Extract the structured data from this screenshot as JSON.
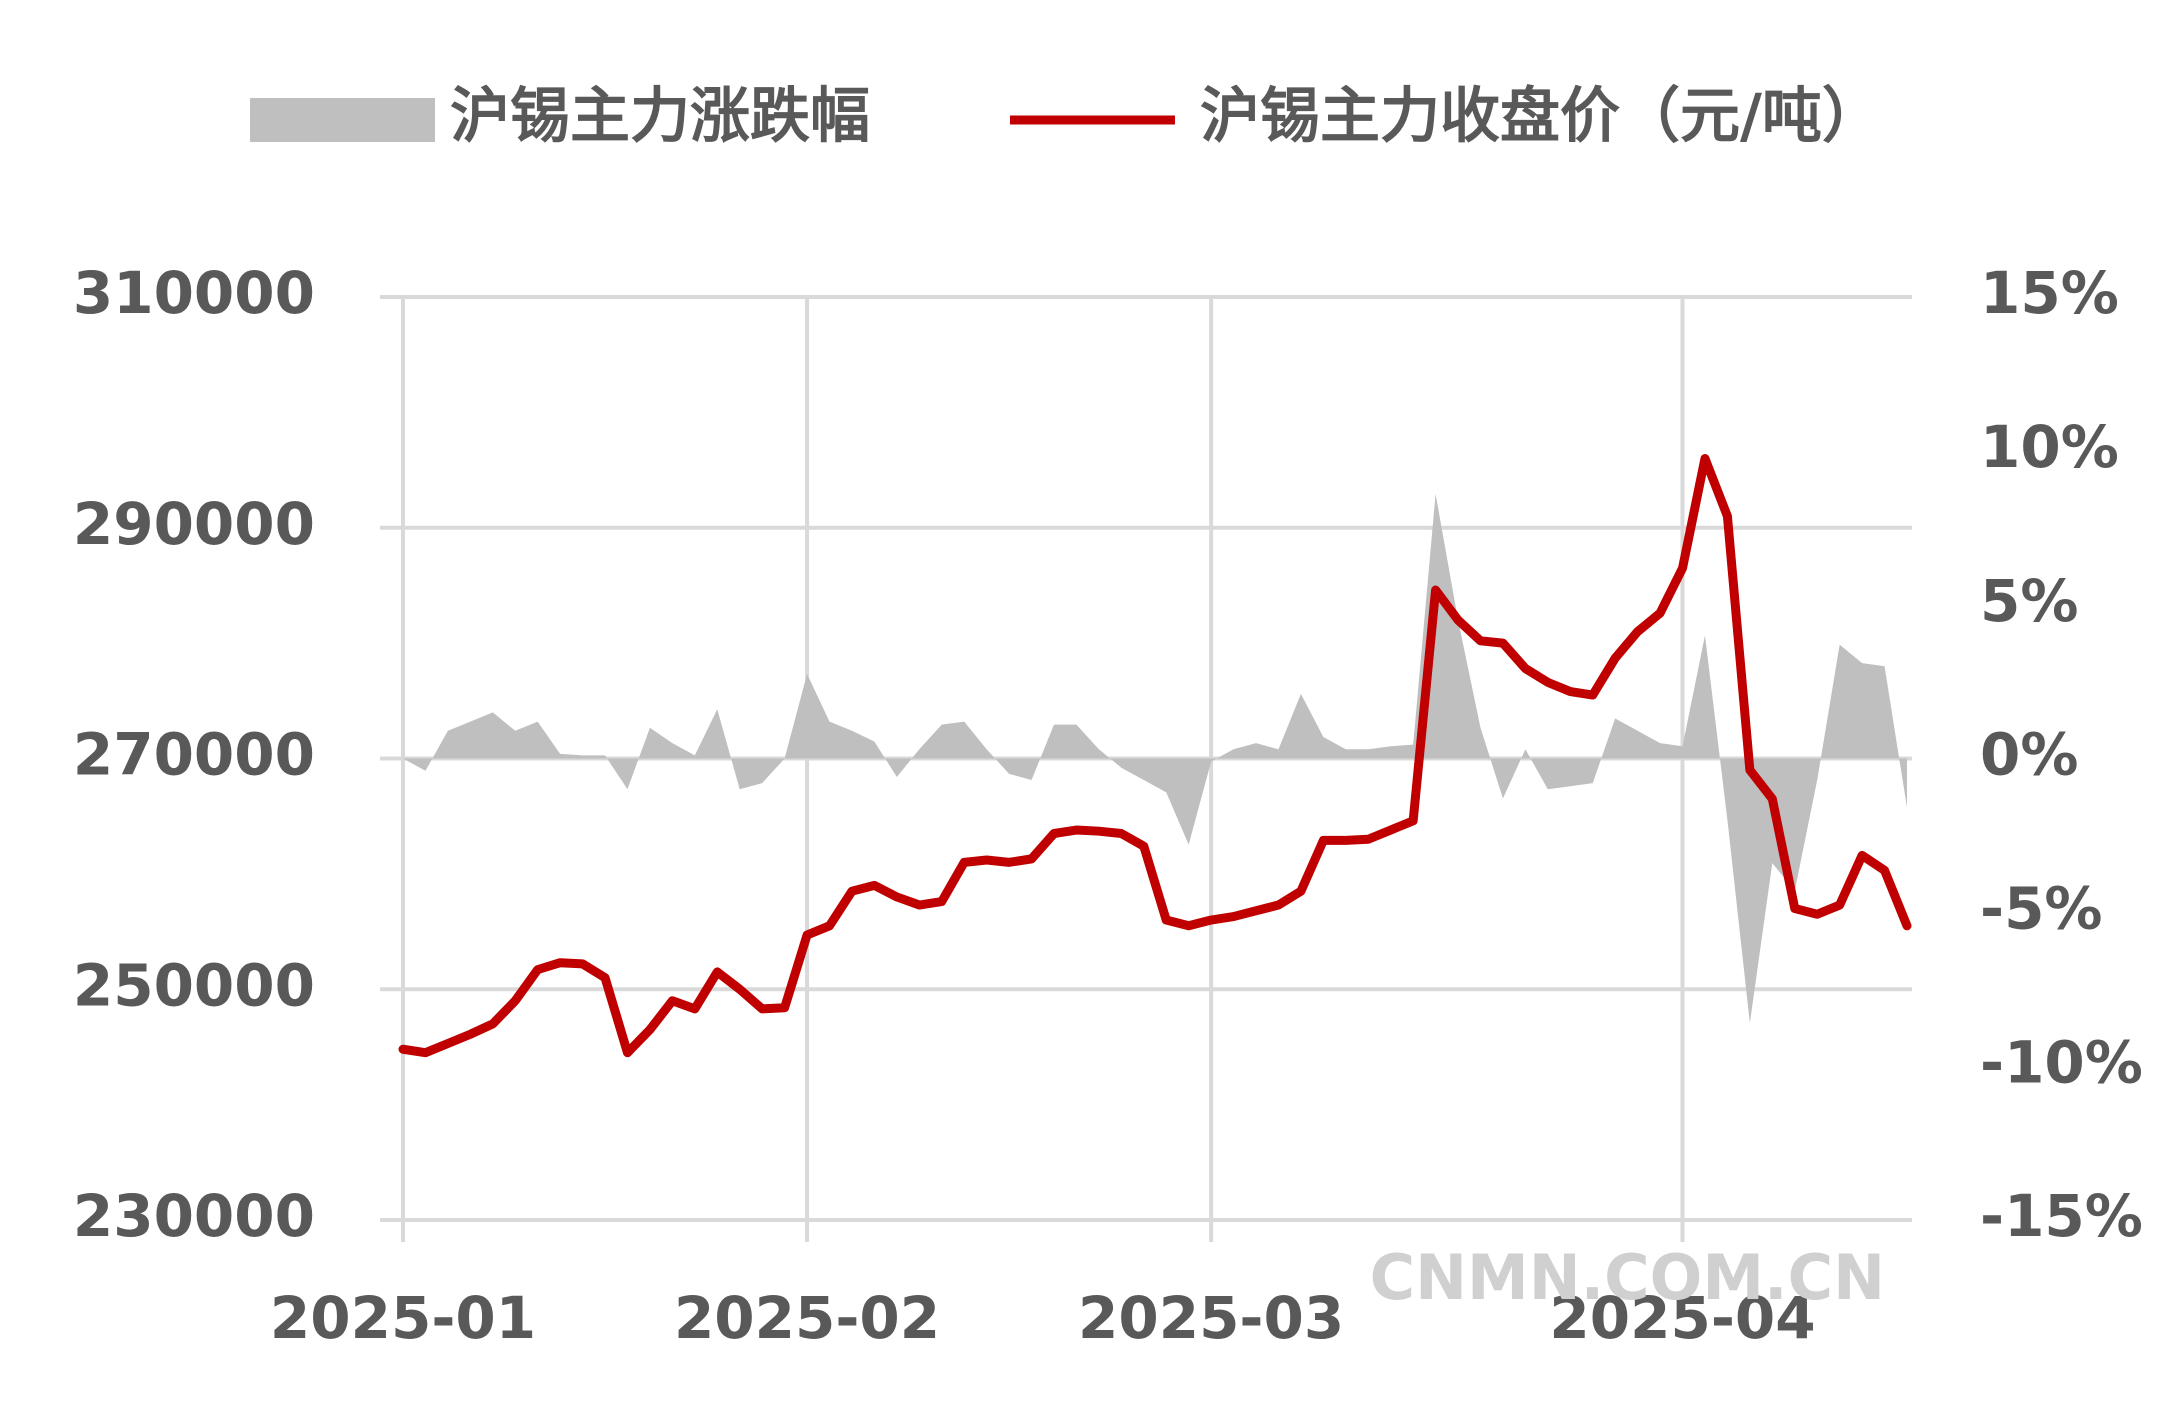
{
  "chart_data": {
    "type": "line",
    "legend": "top",
    "grid": true,
    "watermark": "CNMN.COM.CN",
    "categories": [
      "2025-01",
      null,
      null,
      null,
      null,
      null,
      null,
      null,
      null,
      null,
      null,
      null,
      null,
      null,
      null,
      null,
      null,
      null,
      "2025-02",
      null,
      null,
      null,
      null,
      null,
      null,
      null,
      null,
      null,
      null,
      null,
      null,
      null,
      null,
      null,
      null,
      null,
      "2025-03",
      null,
      null,
      null,
      null,
      null,
      null,
      null,
      null,
      null,
      null,
      null,
      null,
      null,
      null,
      null,
      null,
      null,
      null,
      null,
      null,
      "2025-04",
      null,
      null,
      null,
      null,
      null,
      null,
      null,
      null,
      null,
      null
    ],
    "series": [
      {
        "name": "沪锡主力涨跌幅",
        "type": "area",
        "axis": "y2",
        "color": "#bfbfbf",
        "values": [
          0,
          -0.4,
          0.9,
          1.2,
          1.5,
          0.9,
          1.2,
          0.15,
          0.1,
          0.1,
          -1.0,
          1.0,
          0.5,
          0.1,
          1.6,
          -1.0,
          -0.8,
          0.0,
          2.75,
          1.2,
          0.9,
          0.55,
          -0.6,
          0.3,
          1.1,
          1.2,
          0.3,
          -0.5,
          -0.7,
          1.1,
          1.1,
          0.3,
          -0.3,
          -0.7,
          -1.1,
          -2.8,
          -0.1,
          0.3,
          0.5,
          0.3,
          2.1,
          0.7,
          0.3,
          0.3,
          0.4,
          0.45,
          8.6,
          4.5,
          1.0,
          -1.3,
          0.3,
          -1.0,
          -0.9,
          -0.8,
          1.3,
          0.9,
          0.5,
          0.4,
          4.0,
          -2.0,
          -8.6,
          -3.4,
          -4.3,
          -0.7,
          3.7,
          3.1,
          3.0,
          -1.6
        ]
      },
      {
        "name": "沪锡主力收盘价（元/吨）",
        "type": "line",
        "axis": "y",
        "color": "#c00000",
        "values": [
          244800,
          244500,
          245300,
          246100,
          247000,
          249000,
          251700,
          252300,
          252200,
          251000,
          244500,
          246500,
          249000,
          248300,
          251500,
          250000,
          248300,
          248400,
          254700,
          255500,
          258500,
          259000,
          258000,
          257300,
          257600,
          261000,
          261200,
          261000,
          261300,
          263500,
          263800,
          263700,
          263500,
          262400,
          256000,
          255500,
          256000,
          256300,
          256800,
          257300,
          258500,
          262900,
          262900,
          263000,
          263800,
          264600,
          284600,
          282000,
          280200,
          280000,
          277800,
          276600,
          275800,
          275500,
          278700,
          281000,
          282600,
          286500,
          296000,
          291000,
          269000,
          266500,
          257000,
          256500,
          257300,
          261600,
          260300,
          255500
        ]
      }
    ],
    "ylim": [
      230000,
      310000
    ],
    "yticks": [
      230000,
      250000,
      270000,
      290000,
      310000
    ],
    "y2lim": [
      -15,
      15
    ],
    "y2ticks": [
      {
        "value": -15,
        "label": "-15%"
      },
      {
        "value": -10,
        "label": "-10%"
      },
      {
        "value": -5,
        "label": "-5%"
      },
      {
        "value": 0,
        "label": "0%"
      },
      {
        "value": 5,
        "label": "5%"
      },
      {
        "value": 10,
        "label": "10%"
      },
      {
        "value": 15,
        "label": "15%"
      }
    ]
  }
}
